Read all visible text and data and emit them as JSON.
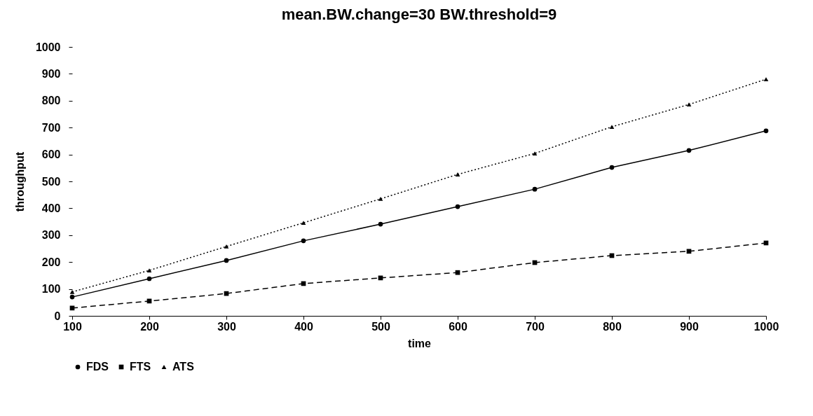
{
  "chart_data": {
    "type": "line",
    "title": "mean.BW.change=30  BW.threshold=9",
    "xlabel": "time",
    "ylabel": "throughput",
    "x": [
      100,
      200,
      300,
      400,
      500,
      600,
      700,
      800,
      900,
      1000
    ],
    "series": [
      {
        "name": "FDS",
        "color": "#000000",
        "marker": "circle",
        "line_style": "solid",
        "values": [
          70,
          138,
          206,
          279,
          341,
          406,
          471,
          552,
          615,
          688
        ]
      },
      {
        "name": "FTS",
        "color": "#000000",
        "marker": "square",
        "line_style": "dashed",
        "values": [
          29,
          55,
          83,
          120,
          141,
          161,
          198,
          224,
          240,
          271
        ]
      },
      {
        "name": "ATS",
        "color": "#000000",
        "marker": "triangle",
        "line_style": "dotted",
        "values": [
          89,
          169,
          258,
          346,
          435,
          526,
          604,
          703,
          786,
          880
        ]
      }
    ],
    "xlim": [
      100,
      1000
    ],
    "xticks": [
      100,
      200,
      300,
      400,
      500,
      600,
      700,
      800,
      900,
      1000
    ],
    "ylim": [
      0,
      1000
    ],
    "yticks": [
      0,
      100,
      200,
      300,
      400,
      500,
      600,
      700,
      800,
      900,
      1000
    ],
    "grid": false,
    "legend": "bottom"
  }
}
